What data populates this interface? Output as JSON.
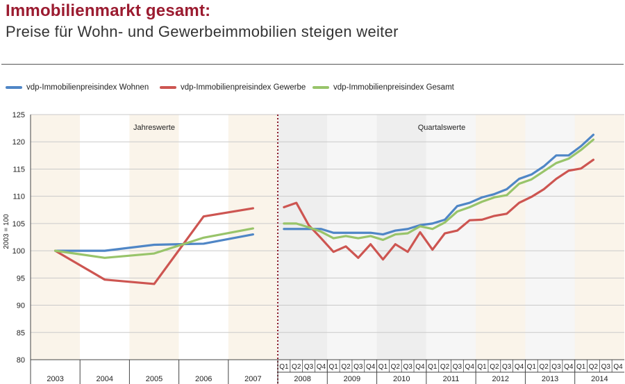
{
  "header": {
    "title": "Immobilienmarkt gesamt",
    "title_colon": ":",
    "subtitle": "Preise für Wohn- und Gewerbeimmobilien steigen weiter"
  },
  "colors": {
    "title": "#9b1b30",
    "wohnen": "#4f86c6",
    "gewerbe": "#cd5551",
    "gesamt": "#98c46a",
    "band_annual": "#faf4ea",
    "band_quarterly": "#eeeeee",
    "divider": "#8b1a2b"
  },
  "chart_data": {
    "type": "line",
    "title": "Immobilienmarkt gesamt: Preise für Wohn- und Gewerbeimmobilien steigen weiter",
    "ylabel": "2003 = 100",
    "ylim": [
      80,
      125
    ],
    "yticks": [
      80,
      85,
      90,
      95,
      100,
      105,
      110,
      115,
      120,
      125
    ],
    "grid": true,
    "legend_position": "top-left",
    "sections": [
      {
        "label": "Jahreswerte",
        "period": "annual"
      },
      {
        "label": "Quartalswerte",
        "period": "quarterly"
      }
    ],
    "annual": {
      "categories": [
        "2003",
        "2004",
        "2005",
        "2006",
        "2007"
      ],
      "series": [
        {
          "name": "vdp-Immobilienpreisindex Wohnen",
          "values": [
            100,
            100,
            101.1,
            101.3,
            103
          ]
        },
        {
          "name": "vdp-Immobilienpreisindex Gewerbe",
          "values": [
            100,
            94.7,
            93.9,
            106.3,
            107.8
          ]
        },
        {
          "name": "vdp-Immobilienpreisindex Gesamt",
          "values": [
            100,
            98.7,
            99.5,
            102.4,
            104.1
          ]
        }
      ]
    },
    "quarterly": {
      "years": [
        "2008",
        "2009",
        "2010",
        "2011",
        "2012",
        "2013",
        "2014"
      ],
      "quarter_labels": [
        "Q1",
        "Q2",
        "Q3",
        "Q4"
      ],
      "series": [
        {
          "name": "vdp-Immobilienpreisindex Wohnen",
          "values": [
            104,
            104,
            104,
            104,
            103.3,
            103.3,
            103.3,
            103.3,
            103,
            103.7,
            104,
            104.7,
            105,
            105.7,
            108.2,
            108.8,
            109.8,
            110.4,
            111.3,
            113.2,
            114,
            115.5,
            117.5,
            117.5,
            119.2,
            121.3
          ]
        },
        {
          "name": "vdp-Immobilienpreisindex Gewerbe",
          "values": [
            108,
            108.8,
            104.7,
            102.3,
            99.8,
            100.8,
            98.7,
            101.2,
            98.4,
            101.2,
            99.8,
            103.4,
            100.2,
            103.2,
            103.7,
            105.6,
            105.7,
            106.4,
            106.8,
            108.8,
            109.9,
            111.3,
            113.2,
            114.7,
            115.1,
            116.7
          ]
        },
        {
          "name": "vdp-Immobilienpreisindex Gesamt",
          "values": [
            105,
            105,
            104.3,
            103.5,
            102.3,
            102.7,
            102.3,
            102.7,
            102,
            103,
            103.2,
            104.5,
            104,
            105.2,
            107.2,
            108,
            109,
            109.8,
            110.2,
            112.3,
            113.1,
            114.6,
            116.1,
            116.9,
            118.5,
            120.4
          ]
        }
      ]
    }
  }
}
